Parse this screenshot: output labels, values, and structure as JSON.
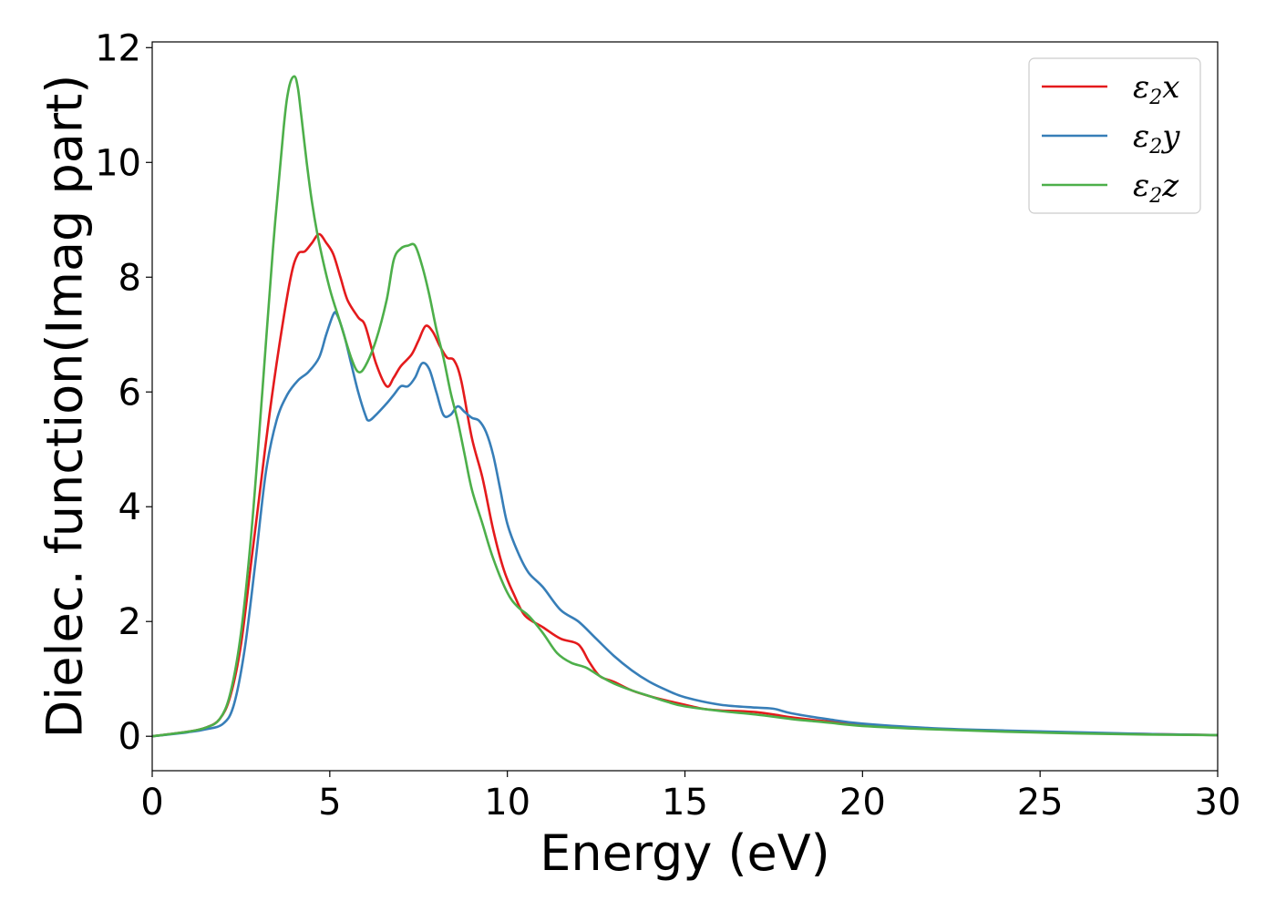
{
  "chart_data": {
    "type": "line",
    "xlabel": "Energy (eV)",
    "ylabel": "Dielec. function(Imag part)",
    "xlim": [
      0,
      30
    ],
    "ylim": [
      -0.6,
      12.1
    ],
    "xticks": [
      0,
      5,
      10,
      15,
      20,
      25,
      30
    ],
    "yticks": [
      0,
      2,
      4,
      6,
      8,
      10,
      12
    ],
    "grid": false,
    "legend_position": "top-right",
    "series": [
      {
        "name": "ε2x",
        "label_base": "ε",
        "label_sub": "2",
        "label_var": "x",
        "color": "#e41a1c",
        "x": [
          0,
          1,
          1.5,
          1.9,
          2.2,
          2.5,
          2.8,
          3.0,
          3.3,
          3.6,
          3.9,
          4.1,
          4.3,
          4.5,
          4.7,
          4.9,
          5.1,
          5.3,
          5.5,
          5.8,
          6.0,
          6.3,
          6.6,
          6.8,
          7.0,
          7.3,
          7.5,
          7.7,
          7.9,
          8.1,
          8.3,
          8.5,
          8.7,
          9.0,
          9.3,
          9.6,
          9.9,
          10.2,
          10.5,
          11.0,
          11.5,
          12.0,
          12.3,
          12.6,
          13.0,
          13.5,
          14.0,
          14.5,
          15.0,
          15.5,
          16.0,
          16.5,
          17.0,
          17.5,
          18.0,
          19.0,
          20.0,
          22.0,
          24.0,
          26.0,
          28.0,
          30.0
        ],
        "y": [
          0,
          0.08,
          0.15,
          0.3,
          0.7,
          1.6,
          3.1,
          4.1,
          5.6,
          6.9,
          8.0,
          8.4,
          8.45,
          8.6,
          8.75,
          8.6,
          8.4,
          8.0,
          7.6,
          7.3,
          7.15,
          6.5,
          6.1,
          6.25,
          6.45,
          6.65,
          6.9,
          7.15,
          7.05,
          6.8,
          6.6,
          6.55,
          6.2,
          5.2,
          4.5,
          3.6,
          2.9,
          2.45,
          2.1,
          1.9,
          1.7,
          1.6,
          1.3,
          1.05,
          0.95,
          0.8,
          0.7,
          0.62,
          0.55,
          0.48,
          0.45,
          0.44,
          0.42,
          0.38,
          0.33,
          0.26,
          0.2,
          0.13,
          0.09,
          0.06,
          0.04,
          0.02
        ]
      },
      {
        "name": "ε2y",
        "label_base": "ε",
        "label_sub": "2",
        "label_var": "y",
        "color": "#377eb8",
        "x": [
          0,
          1,
          1.5,
          2.0,
          2.3,
          2.6,
          2.9,
          3.2,
          3.5,
          3.8,
          4.1,
          4.4,
          4.7,
          4.9,
          5.1,
          5.2,
          5.4,
          5.6,
          5.8,
          6.0,
          6.1,
          6.3,
          6.6,
          6.8,
          7.0,
          7.2,
          7.4,
          7.6,
          7.8,
          8.0,
          8.2,
          8.4,
          8.6,
          8.8,
          9.0,
          9.2,
          9.4,
          9.6,
          9.8,
          10.0,
          10.3,
          10.6,
          11.0,
          11.5,
          12.0,
          12.5,
          13.0,
          13.5,
          14.0,
          14.5,
          15.0,
          16.0,
          17.0,
          17.5,
          18.0,
          19.0,
          20.0,
          22.0,
          24.0,
          26.0,
          28.0,
          30.0
        ],
        "y": [
          0,
          0.07,
          0.12,
          0.22,
          0.55,
          1.5,
          3.0,
          4.6,
          5.5,
          5.95,
          6.2,
          6.35,
          6.6,
          7.0,
          7.35,
          7.35,
          7.0,
          6.5,
          6.0,
          5.6,
          5.5,
          5.6,
          5.8,
          5.95,
          6.1,
          6.1,
          6.25,
          6.5,
          6.4,
          6.0,
          5.6,
          5.6,
          5.75,
          5.65,
          5.55,
          5.5,
          5.3,
          4.9,
          4.3,
          3.7,
          3.2,
          2.85,
          2.6,
          2.2,
          2.0,
          1.7,
          1.4,
          1.15,
          0.95,
          0.8,
          0.68,
          0.55,
          0.5,
          0.48,
          0.4,
          0.3,
          0.22,
          0.14,
          0.1,
          0.07,
          0.04,
          0.02
        ]
      },
      {
        "name": "ε2z",
        "label_base": "ε",
        "label_sub": "2",
        "label_var": "z",
        "color": "#4daf4a",
        "x": [
          0,
          1,
          1.5,
          1.9,
          2.2,
          2.5,
          2.8,
          3.1,
          3.4,
          3.7,
          3.85,
          4.0,
          4.1,
          4.2,
          4.35,
          4.5,
          4.7,
          5.0,
          5.3,
          5.6,
          5.8,
          6.0,
          6.3,
          6.6,
          6.8,
          7.0,
          7.2,
          7.4,
          7.6,
          7.8,
          8.0,
          8.2,
          8.4,
          8.6,
          8.8,
          9.0,
          9.3,
          9.6,
          10.0,
          10.3,
          10.6,
          11.0,
          11.4,
          11.8,
          12.2,
          12.6,
          13.0,
          13.5,
          14.0,
          14.5,
          15.0,
          16.0,
          17.0,
          18.0,
          19.0,
          20.0,
          22.0,
          24.0,
          26.0,
          28.0,
          30.0
        ],
        "y": [
          0,
          0.08,
          0.15,
          0.3,
          0.75,
          1.8,
          3.6,
          6.0,
          8.5,
          10.6,
          11.3,
          11.5,
          11.3,
          10.8,
          10.0,
          9.3,
          8.6,
          7.8,
          7.2,
          6.6,
          6.35,
          6.45,
          6.9,
          7.6,
          8.3,
          8.5,
          8.55,
          8.55,
          8.2,
          7.7,
          7.1,
          6.6,
          6.0,
          5.5,
          4.9,
          4.3,
          3.7,
          3.1,
          2.5,
          2.25,
          2.1,
          1.8,
          1.45,
          1.28,
          1.2,
          1.05,
          0.92,
          0.8,
          0.7,
          0.6,
          0.52,
          0.44,
          0.38,
          0.3,
          0.24,
          0.18,
          0.12,
          0.08,
          0.05,
          0.03,
          0.02
        ]
      }
    ]
  }
}
